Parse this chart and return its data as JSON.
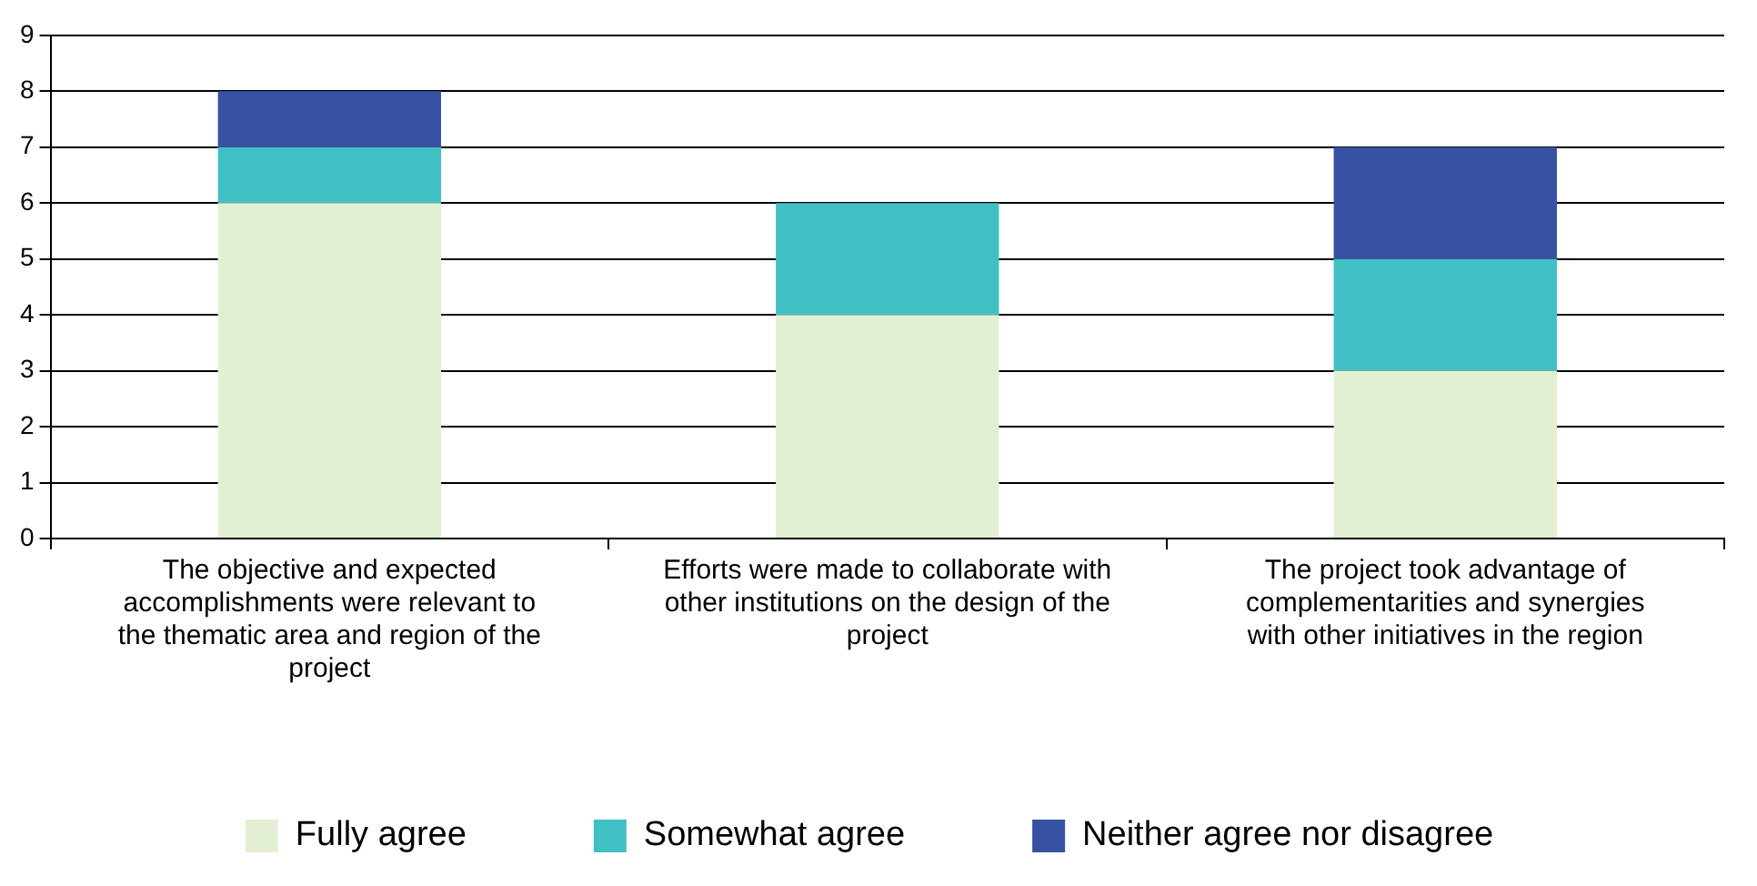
{
  "chart_data": {
    "type": "bar",
    "stacked": true,
    "categories": [
      "The objective and expected accomplishments were relevant to the thematic area and region of the project",
      "Efforts were made to collaborate with other institutions on the design of the project",
      "The project took advantage of complementarities and synergies with other initiatives in the region"
    ],
    "series": [
      {
        "name": "Fully agree",
        "color": "#e3efd3",
        "values": [
          6,
          4,
          3
        ]
      },
      {
        "name": "Somewhat agree",
        "color": "#40c0c4",
        "values": [
          1,
          2,
          2
        ]
      },
      {
        "name": "Neither agree nor disagree",
        "color": "#3752a4",
        "values": [
          1,
          0,
          2
        ]
      }
    ],
    "ylim": [
      0,
      9
    ],
    "yticks": [
      0,
      1,
      2,
      3,
      4,
      5,
      6,
      7,
      8,
      9
    ],
    "grid": "y",
    "legend": "bottom"
  }
}
